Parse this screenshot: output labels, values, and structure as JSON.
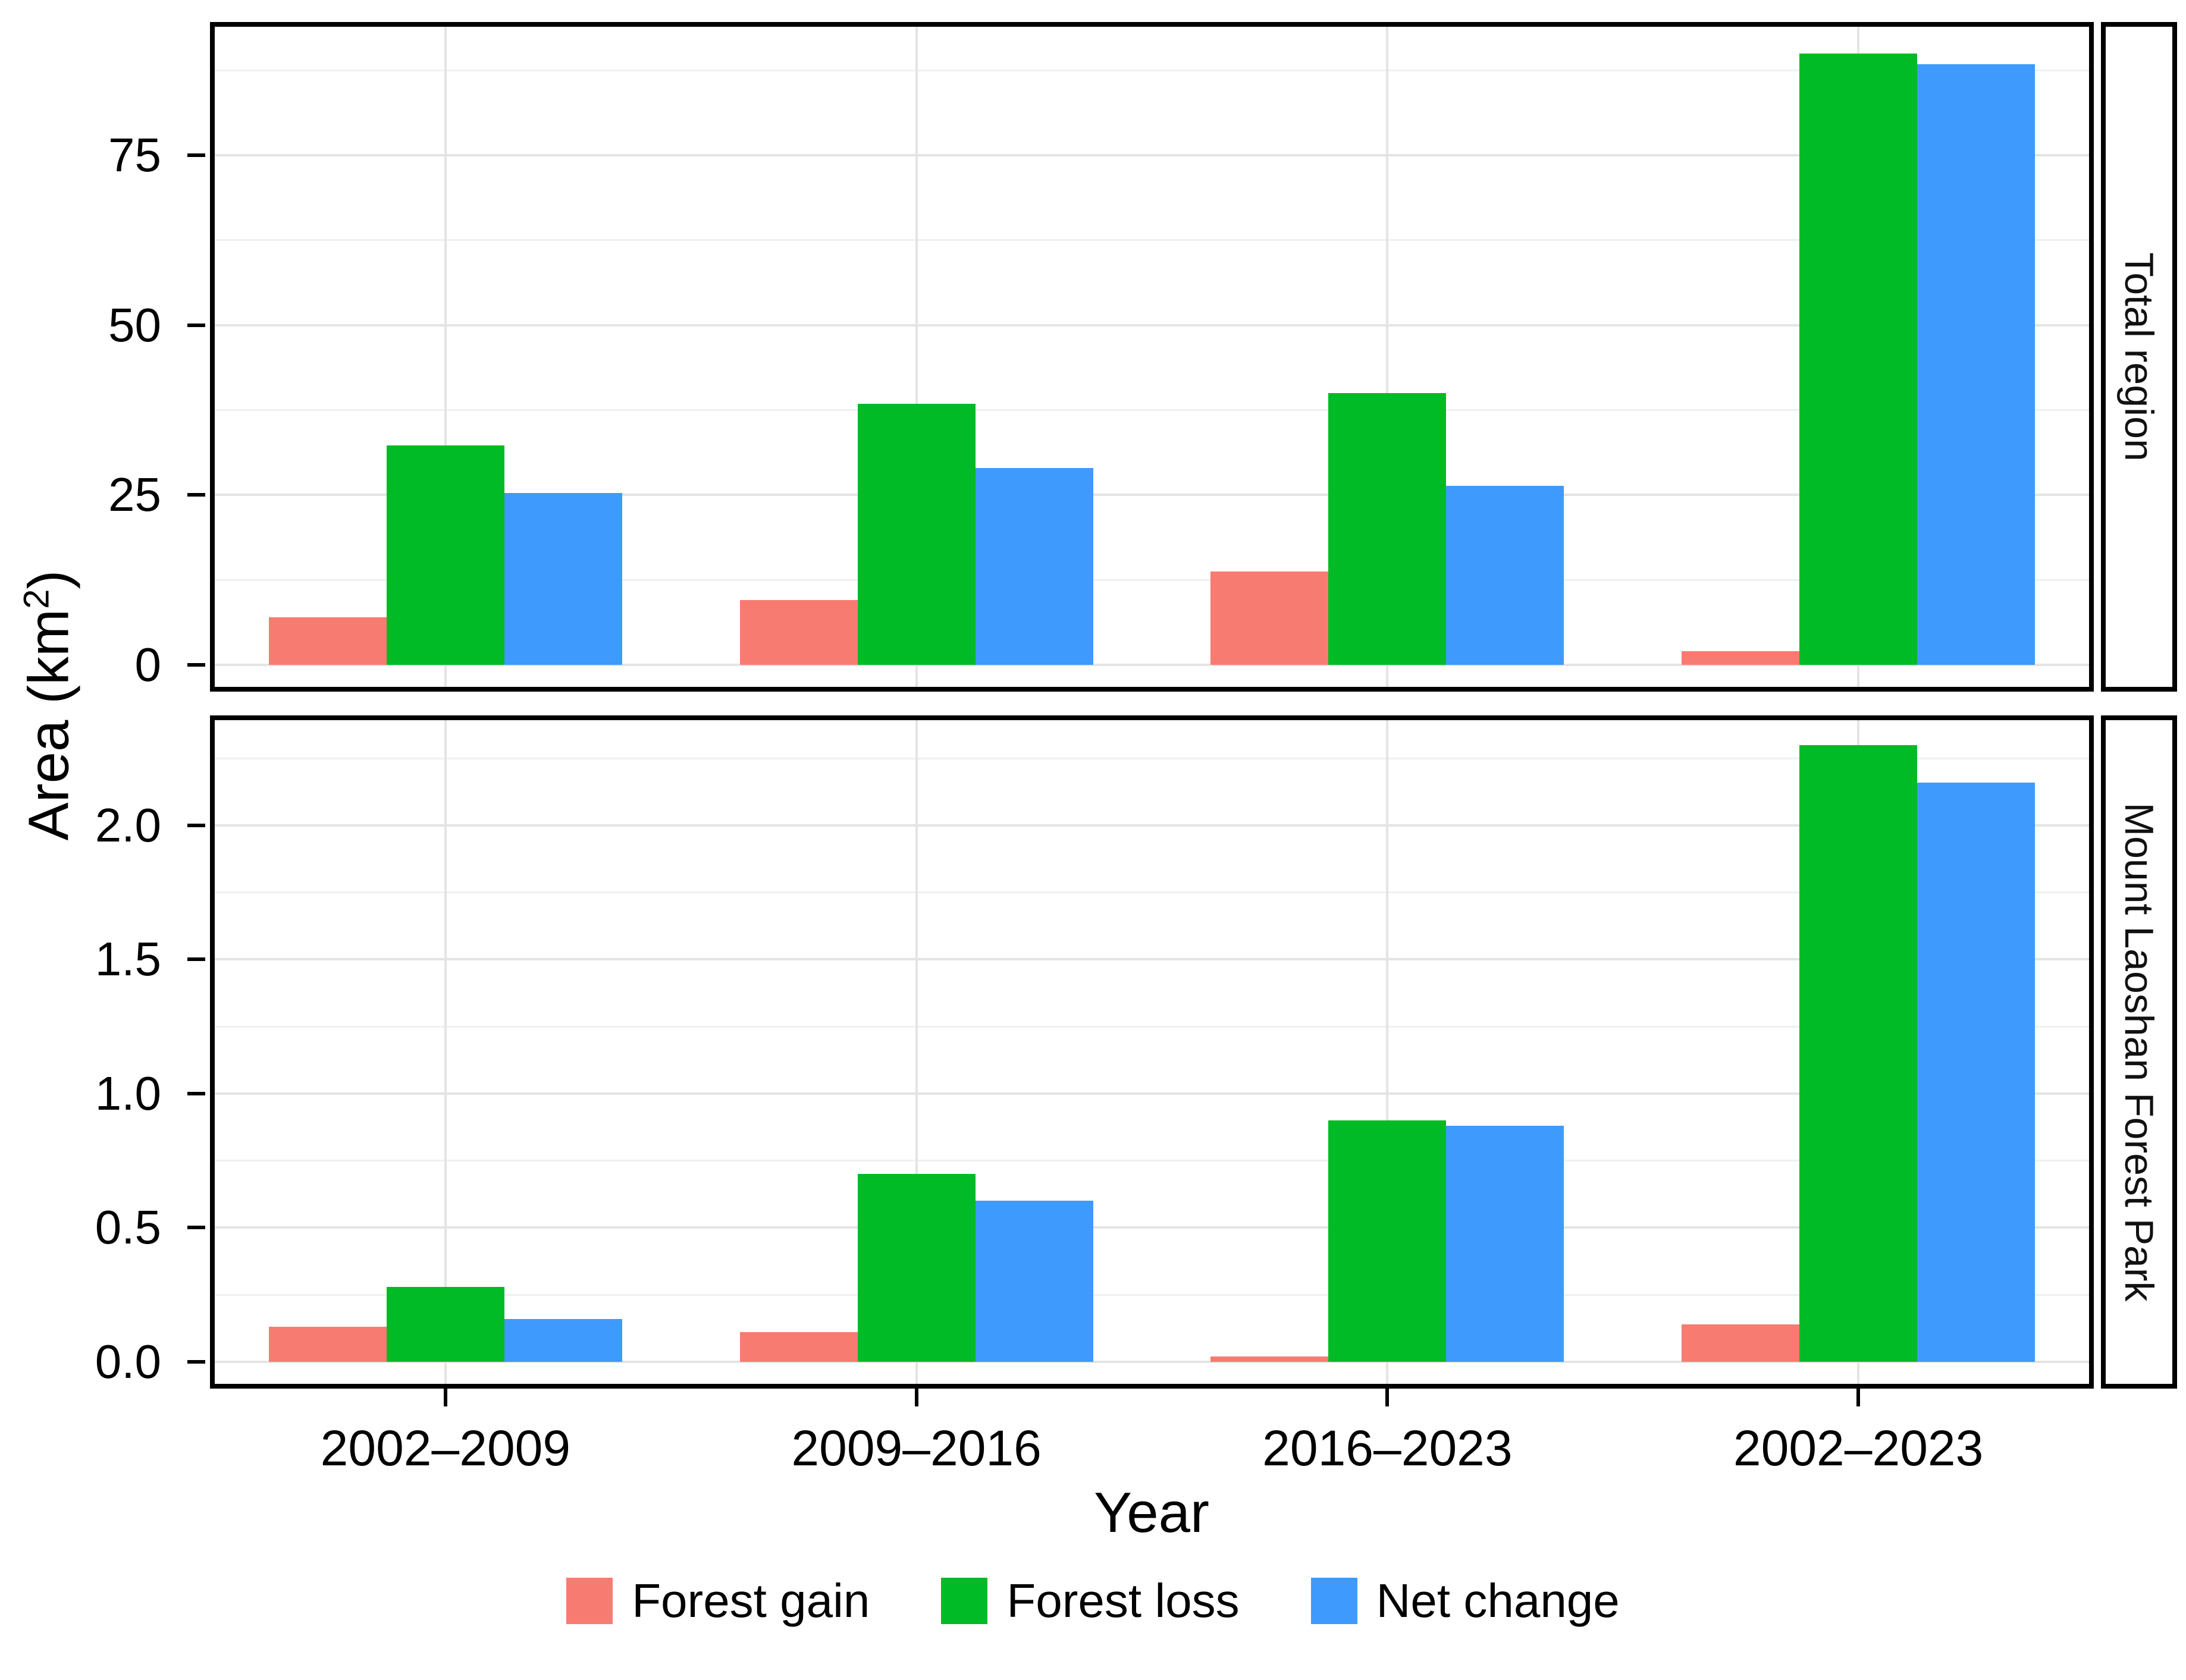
{
  "chart_data": {
    "type": "bar",
    "title": "",
    "xlabel": "Year",
    "ylabel": {
      "text": "Area (km",
      "sup": "2",
      "close": ")"
    },
    "categories": [
      "2002–2009",
      "2009–2016",
      "2016–2023",
      "2002–2023"
    ],
    "grid": "on",
    "legend_position": "bottom",
    "facets": [
      {
        "label": "Total region",
        "ylim": [
          0,
          94.6
        ],
        "yticks": [
          0,
          25,
          50,
          75
        ],
        "ytick_labels": [
          "0",
          "25",
          "50",
          "75"
        ],
        "yticks_minor": [
          12.5,
          37.5,
          62.5,
          87.5
        ],
        "series": [
          {
            "name": "Forest gain",
            "values": [
              7.0,
              9.5,
              13.7,
              2.0
            ]
          },
          {
            "name": "Forest loss",
            "values": [
              32.3,
              38.4,
              40.0,
              90.0
            ]
          },
          {
            "name": "Net change",
            "values": [
              25.3,
              29.0,
              26.3,
              88.4
            ]
          }
        ]
      },
      {
        "label": "Mount Laoshan Forest Park",
        "ylim": [
          0,
          2.41
        ],
        "yticks": [
          0,
          0.5,
          1.0,
          1.5,
          2.0
        ],
        "ytick_labels": [
          "0.0",
          "0.5",
          "1.0",
          "1.5",
          "2.0"
        ],
        "yticks_minor": [
          0.25,
          0.75,
          1.25,
          1.75,
          2.25
        ],
        "series": [
          {
            "name": "Forest gain",
            "values": [
              0.13,
              0.11,
              0.02,
              0.14
            ]
          },
          {
            "name": "Forest loss",
            "values": [
              0.28,
              0.7,
              0.9,
              2.3
            ]
          },
          {
            "name": "Net change",
            "values": [
              0.16,
              0.6,
              0.88,
              2.16
            ]
          }
        ]
      }
    ],
    "legend": {
      "entries": [
        {
          "label": "Forest gain",
          "color": "#F87B72"
        },
        {
          "label": "Forest loss",
          "color": "#00BB26"
        },
        {
          "label": "Net change",
          "color": "#3E9AFC"
        }
      ]
    }
  }
}
